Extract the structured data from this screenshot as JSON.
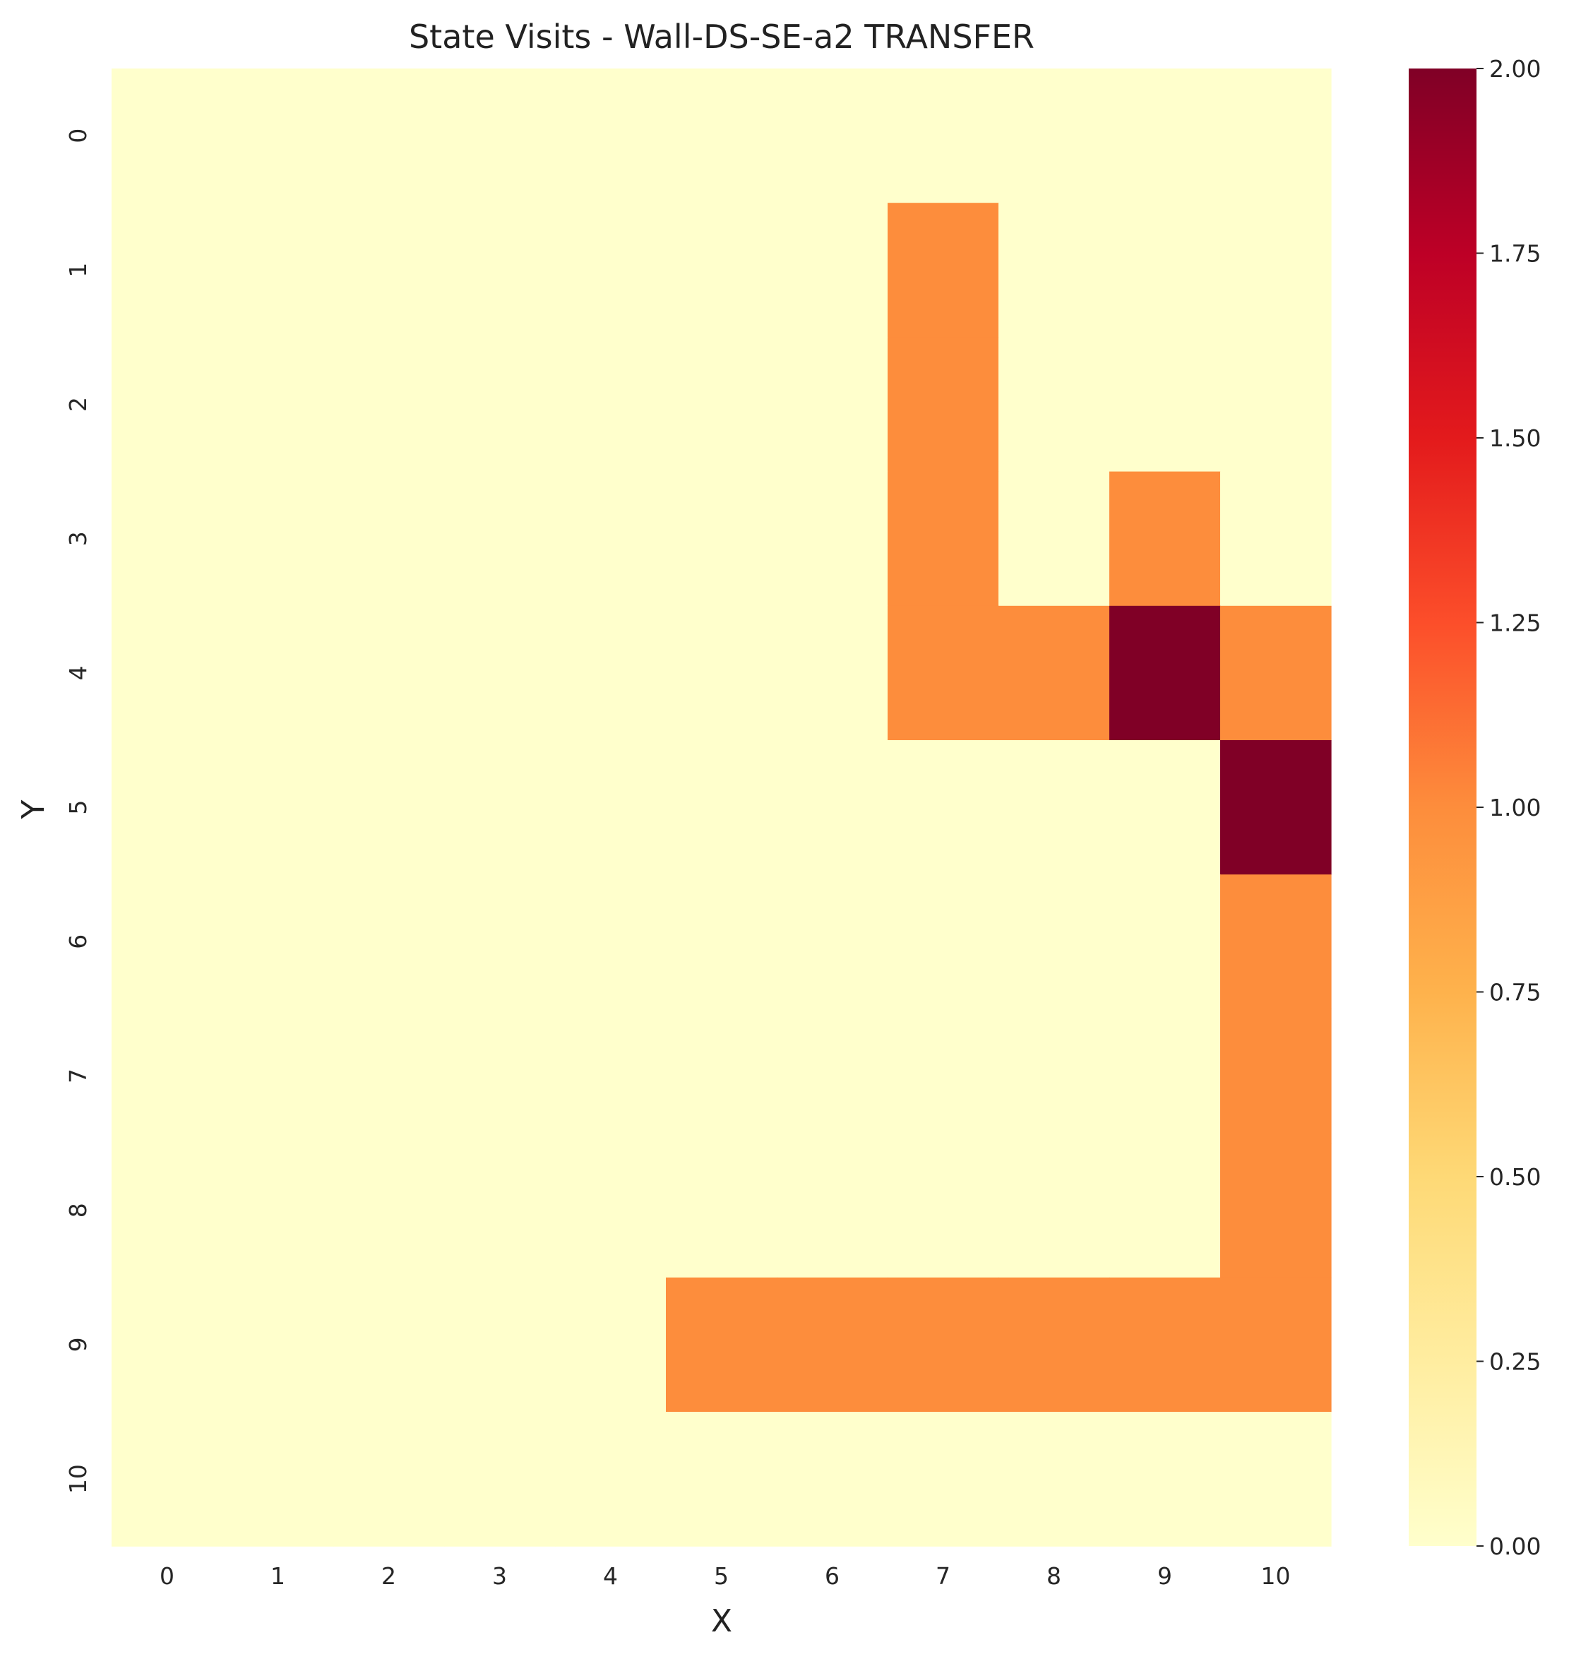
{
  "chart_data": {
    "type": "heatmap",
    "title": "State Visits - Wall-DS-SE-a2 TRANSFER",
    "xlabel": "X",
    "ylabel": "Y",
    "x_categories": [
      "0",
      "1",
      "2",
      "3",
      "4",
      "5",
      "6",
      "7",
      "8",
      "9",
      "10"
    ],
    "y_categories": [
      "0",
      "1",
      "2",
      "3",
      "4",
      "5",
      "6",
      "7",
      "8",
      "9",
      "10"
    ],
    "values": [
      [
        0,
        0,
        0,
        0,
        0,
        0,
        0,
        0,
        0,
        0,
        0
      ],
      [
        0,
        0,
        0,
        0,
        0,
        0,
        0,
        1,
        0,
        0,
        0
      ],
      [
        0,
        0,
        0,
        0,
        0,
        0,
        0,
        1,
        0,
        0,
        0
      ],
      [
        0,
        0,
        0,
        0,
        0,
        0,
        0,
        1,
        0,
        1,
        0
      ],
      [
        0,
        0,
        0,
        0,
        0,
        0,
        0,
        1,
        1,
        2,
        1
      ],
      [
        0,
        0,
        0,
        0,
        0,
        0,
        0,
        0,
        0,
        0,
        2
      ],
      [
        0,
        0,
        0,
        0,
        0,
        0,
        0,
        0,
        0,
        0,
        1
      ],
      [
        0,
        0,
        0,
        0,
        0,
        0,
        0,
        0,
        0,
        0,
        1
      ],
      [
        0,
        0,
        0,
        0,
        0,
        0,
        0,
        0,
        0,
        0,
        1
      ],
      [
        0,
        0,
        0,
        0,
        0,
        1,
        1,
        1,
        1,
        1,
        1
      ],
      [
        0,
        0,
        0,
        0,
        0,
        0,
        0,
        0,
        0,
        0,
        0
      ]
    ],
    "colorbar": {
      "min": 0,
      "max": 2,
      "ticks": [
        "0.00",
        "0.25",
        "0.50",
        "0.75",
        "1.00",
        "1.25",
        "1.50",
        "1.75",
        "2.00"
      ]
    },
    "colormap": "YlOrRd",
    "colormap_stops": [
      "#ffffcc",
      "#ffeda0",
      "#fed976",
      "#feb24c",
      "#fd8d3c",
      "#fc4e2a",
      "#e31a1c",
      "#bd0026",
      "#800026"
    ]
  }
}
